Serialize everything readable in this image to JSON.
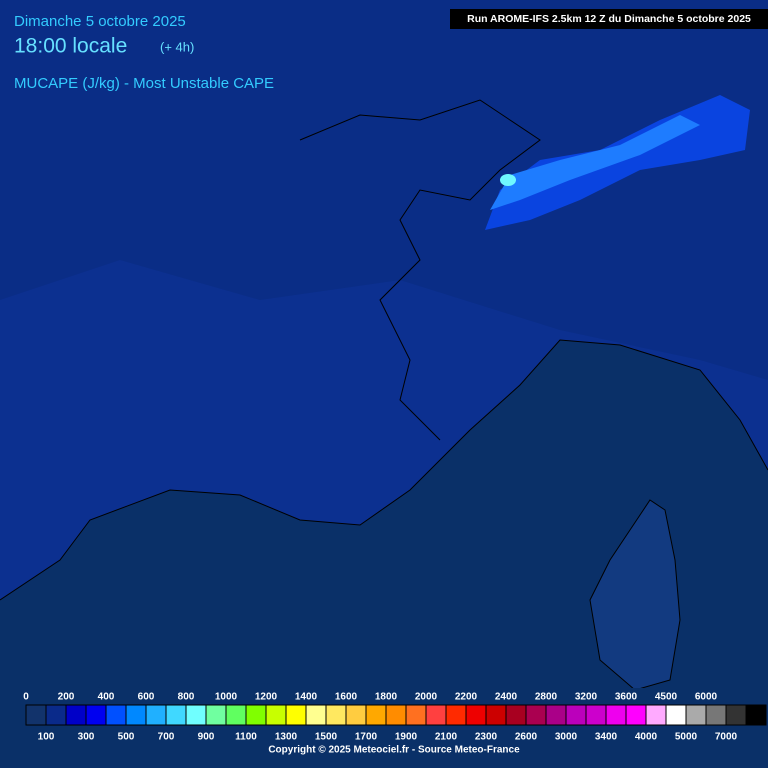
{
  "header": {
    "date": "Dimanche 5 octobre 2025",
    "time": "18:00 locale",
    "offset": "(+ 4h)",
    "parameter": "MUCAPE (J/kg) - Most Unstable CAPE",
    "run": "Run AROME-IFS 2.5km 12 Z du Dimanche 5 octobre 2025"
  },
  "legend": {
    "top_labels": [
      0,
      200,
      400,
      600,
      800,
      1000,
      1200,
      1400,
      1600,
      1800,
      2000,
      2200,
      2400,
      2800,
      3200,
      3600,
      4500,
      6000
    ],
    "bottom_labels": [
      100,
      300,
      500,
      700,
      900,
      1100,
      1300,
      1500,
      1700,
      1900,
      2100,
      2300,
      2600,
      3000,
      3400,
      4000,
      5000,
      7000
    ],
    "colors": [
      "#12336b",
      "#0a2a8a",
      "#0000c8",
      "#0000f0",
      "#0050ff",
      "#0088ff",
      "#20b0ff",
      "#40d8ff",
      "#70ffff",
      "#70ffa0",
      "#60ff60",
      "#80ff00",
      "#c8ff00",
      "#ffff00",
      "#ffff90",
      "#ffe860",
      "#ffcc40",
      "#ffa800",
      "#ff8c00",
      "#ff7020",
      "#ff4040",
      "#ff2a00",
      "#ee0000",
      "#cc0000",
      "#a80020",
      "#aa0050",
      "#aa0088",
      "#bb00bb",
      "#cc00cc",
      "#ee00ee",
      "#ff00ff",
      "#ffaaff",
      "#ffffff",
      "#aaaaaa",
      "#777777",
      "#333333",
      "#000000"
    ]
  },
  "footer": {
    "copyright": "Copyright © 2025 Meteociel.fr - Source Meteo-France"
  }
}
